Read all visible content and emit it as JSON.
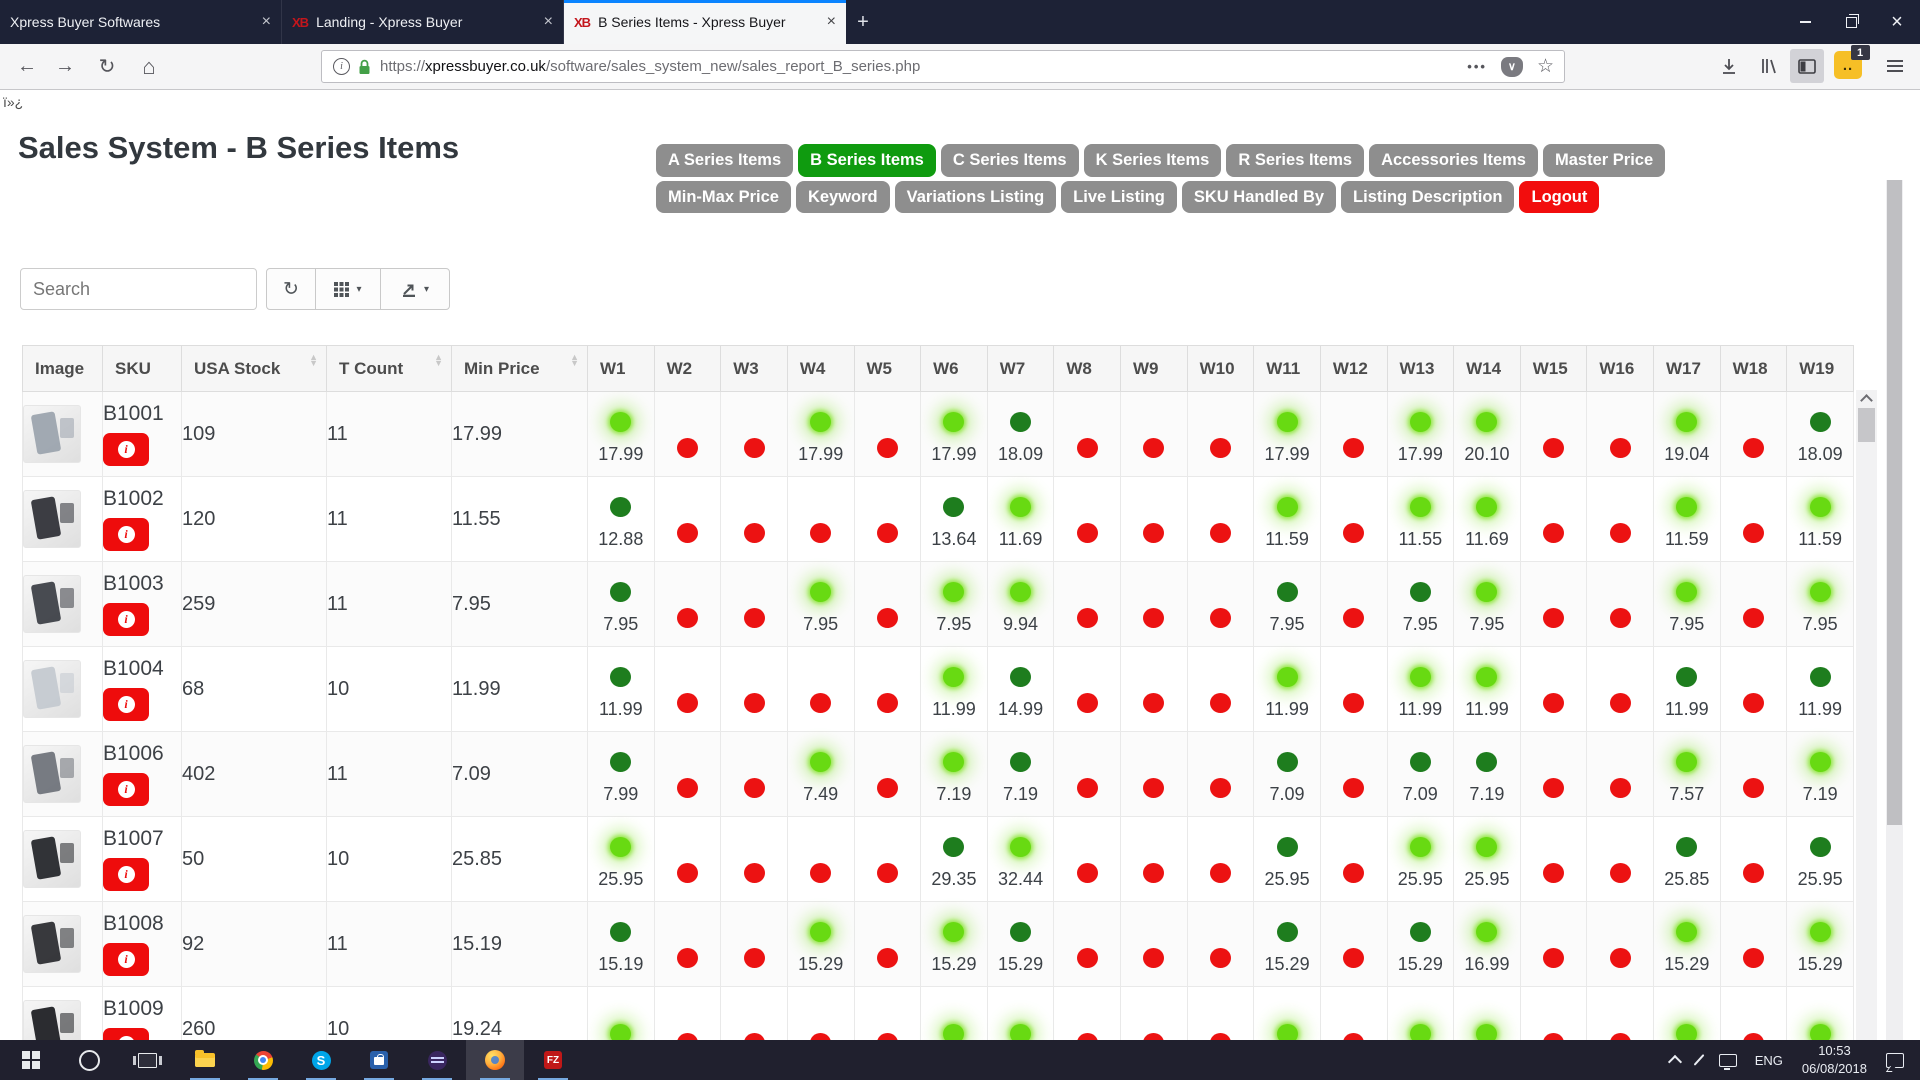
{
  "browser": {
    "tabs": [
      {
        "title": "Xpress Buyer Softwares",
        "favicon": "",
        "active": false
      },
      {
        "title": "Landing - Xpress Buyer",
        "favicon": "XB",
        "active": false
      },
      {
        "title": "B Series Items - Xpress Buyer",
        "favicon": "XB",
        "active": true
      }
    ],
    "url": {
      "scheme": "https://",
      "domain": "xpressbuyer.co.uk",
      "path": "/software/sales_system_new/sales_report_B_series.php"
    },
    "extension_badge": "1",
    "icons": {
      "back": "←",
      "forward": "→",
      "reload": "↻",
      "home": "⌂",
      "page_actions": "•••",
      "pocket_chevron": "∨",
      "bookmark_star": "☆",
      "close": "×",
      "new_tab": "+",
      "info_i": "i"
    }
  },
  "page": {
    "bom_artifact": "ï»¿",
    "title": "Sales System - B Series Items",
    "nav_buttons": [
      {
        "label": "A Series Items",
        "style": "gray"
      },
      {
        "label": "B Series Items",
        "style": "green"
      },
      {
        "label": "C Series Items",
        "style": "gray"
      },
      {
        "label": "K Series Items",
        "style": "gray"
      },
      {
        "label": "R Series Items",
        "style": "gray"
      },
      {
        "label": "Accessories Items",
        "style": "gray"
      },
      {
        "label": "Master Price",
        "style": "gray"
      },
      {
        "label": "Min-Max Price",
        "style": "gray"
      },
      {
        "label": "Keyword",
        "style": "gray"
      },
      {
        "label": "Variations Listing",
        "style": "gray"
      },
      {
        "label": "Live Listing",
        "style": "gray"
      },
      {
        "label": "SKU Handled By",
        "style": "gray"
      },
      {
        "label": "Listing Description",
        "style": "gray"
      },
      {
        "label": "Logout",
        "style": "red"
      }
    ],
    "search_placeholder": "Search",
    "toolbar_icons": [
      "refresh-icon",
      "columns-grid-icon",
      "export-icon"
    ]
  },
  "table": {
    "columns": [
      {
        "label": "Image",
        "sortable": false
      },
      {
        "label": "SKU",
        "sortable": false
      },
      {
        "label": "USA Stock",
        "sortable": true
      },
      {
        "label": "T Count",
        "sortable": true
      },
      {
        "label": "Min Price",
        "sortable": true
      }
    ],
    "week_columns": [
      "W1",
      "W2",
      "W3",
      "W4",
      "W5",
      "W6",
      "W7",
      "W8",
      "W9",
      "W10",
      "W11",
      "W12",
      "W13",
      "W14",
      "W15",
      "W16",
      "W17",
      "W18",
      "W19"
    ],
    "dot_colors": {
      "green_glow": "#68da12",
      "green_dark": "#1e7d1e",
      "red": "#ec1212"
    },
    "rows": [
      {
        "sku": "B1001",
        "stock": "109",
        "t_count": "11",
        "min_price": "17.99",
        "thumb": "#9aa3ad",
        "weeks": [
          {
            "s": "g",
            "v": "17.99"
          },
          {
            "s": "r"
          },
          {
            "s": "r"
          },
          {
            "s": "g",
            "v": "17.99"
          },
          {
            "s": "r"
          },
          {
            "s": "g",
            "v": "17.99"
          },
          {
            "s": "d",
            "v": "18.09"
          },
          {
            "s": "r"
          },
          {
            "s": "r"
          },
          {
            "s": "r"
          },
          {
            "s": "g",
            "v": "17.99"
          },
          {
            "s": "r"
          },
          {
            "s": "g",
            "v": "17.99"
          },
          {
            "s": "g",
            "v": "20.10"
          },
          {
            "s": "r"
          },
          {
            "s": "r"
          },
          {
            "s": "g",
            "v": "19.04"
          },
          {
            "s": "r"
          },
          {
            "s": "d",
            "v": "18.09"
          }
        ]
      },
      {
        "sku": "B1002",
        "stock": "120",
        "t_count": "11",
        "min_price": "11.55",
        "thumb": "#2c2e34",
        "weeks": [
          {
            "s": "d",
            "v": "12.88"
          },
          {
            "s": "r"
          },
          {
            "s": "r"
          },
          {
            "s": "r"
          },
          {
            "s": "r"
          },
          {
            "s": "d",
            "v": "13.64"
          },
          {
            "s": "g",
            "v": "11.69"
          },
          {
            "s": "r"
          },
          {
            "s": "r"
          },
          {
            "s": "r"
          },
          {
            "s": "g",
            "v": "11.59"
          },
          {
            "s": "r"
          },
          {
            "s": "g",
            "v": "11.55"
          },
          {
            "s": "g",
            "v": "11.69"
          },
          {
            "s": "r"
          },
          {
            "s": "r"
          },
          {
            "s": "g",
            "v": "11.59"
          },
          {
            "s": "r"
          },
          {
            "s": "g",
            "v": "11.59"
          }
        ]
      },
      {
        "sku": "B1003",
        "stock": "259",
        "t_count": "11",
        "min_price": "7.95",
        "thumb": "#3a3d43",
        "weeks": [
          {
            "s": "d",
            "v": "7.95"
          },
          {
            "s": "r"
          },
          {
            "s": "r"
          },
          {
            "s": "g",
            "v": "7.95"
          },
          {
            "s": "r"
          },
          {
            "s": "g",
            "v": "7.95"
          },
          {
            "s": "g",
            "v": "9.94"
          },
          {
            "s": "r"
          },
          {
            "s": "r"
          },
          {
            "s": "r"
          },
          {
            "s": "d",
            "v": "7.95"
          },
          {
            "s": "r"
          },
          {
            "s": "d",
            "v": "7.95"
          },
          {
            "s": "g",
            "v": "7.95"
          },
          {
            "s": "r"
          },
          {
            "s": "r"
          },
          {
            "s": "g",
            "v": "7.95"
          },
          {
            "s": "r"
          },
          {
            "s": "g",
            "v": "7.95"
          }
        ]
      },
      {
        "sku": "B1004",
        "stock": "68",
        "t_count": "10",
        "min_price": "11.99",
        "thumb": "#c3c9cf",
        "weeks": [
          {
            "s": "d",
            "v": "11.99"
          },
          {
            "s": "r"
          },
          {
            "s": "r"
          },
          {
            "s": "r"
          },
          {
            "s": "r"
          },
          {
            "s": "g",
            "v": "11.99"
          },
          {
            "s": "d",
            "v": "14.99"
          },
          {
            "s": "r"
          },
          {
            "s": "r"
          },
          {
            "s": "r"
          },
          {
            "s": "g",
            "v": "11.99"
          },
          {
            "s": "r"
          },
          {
            "s": "g",
            "v": "11.99"
          },
          {
            "s": "g",
            "v": "11.99"
          },
          {
            "s": "r"
          },
          {
            "s": "r"
          },
          {
            "s": "d",
            "v": "11.99"
          },
          {
            "s": "r"
          },
          {
            "s": "d",
            "v": "11.99"
          }
        ]
      },
      {
        "sku": "B1006",
        "stock": "402",
        "t_count": "11",
        "min_price": "7.09",
        "thumb": "#6d7178",
        "weeks": [
          {
            "s": "d",
            "v": "7.99"
          },
          {
            "s": "r"
          },
          {
            "s": "r"
          },
          {
            "s": "g",
            "v": "7.49"
          },
          {
            "s": "r"
          },
          {
            "s": "g",
            "v": "7.19"
          },
          {
            "s": "d",
            "v": "7.19"
          },
          {
            "s": "r"
          },
          {
            "s": "r"
          },
          {
            "s": "r"
          },
          {
            "s": "d",
            "v": "7.09"
          },
          {
            "s": "r"
          },
          {
            "s": "d",
            "v": "7.09"
          },
          {
            "s": "d",
            "v": "7.19"
          },
          {
            "s": "r"
          },
          {
            "s": "r"
          },
          {
            "s": "g",
            "v": "7.57"
          },
          {
            "s": "r"
          },
          {
            "s": "g",
            "v": "7.19"
          }
        ]
      },
      {
        "sku": "B1007",
        "stock": "50",
        "t_count": "10",
        "min_price": "25.85",
        "thumb": "#212327",
        "weeks": [
          {
            "s": "g",
            "v": "25.95"
          },
          {
            "s": "r"
          },
          {
            "s": "r"
          },
          {
            "s": "r"
          },
          {
            "s": "r"
          },
          {
            "s": "d",
            "v": "29.35"
          },
          {
            "s": "g",
            "v": "32.44"
          },
          {
            "s": "r"
          },
          {
            "s": "r"
          },
          {
            "s": "r"
          },
          {
            "s": "d",
            "v": "25.95"
          },
          {
            "s": "r"
          },
          {
            "s": "g",
            "v": "25.95"
          },
          {
            "s": "g",
            "v": "25.95"
          },
          {
            "s": "r"
          },
          {
            "s": "r"
          },
          {
            "s": "d",
            "v": "25.85"
          },
          {
            "s": "r"
          },
          {
            "s": "d",
            "v": "25.95"
          }
        ]
      },
      {
        "sku": "B1008",
        "stock": "92",
        "t_count": "11",
        "min_price": "15.19",
        "thumb": "#28292e",
        "weeks": [
          {
            "s": "d",
            "v": "15.19"
          },
          {
            "s": "r"
          },
          {
            "s": "r"
          },
          {
            "s": "g",
            "v": "15.29"
          },
          {
            "s": "r"
          },
          {
            "s": "g",
            "v": "15.29"
          },
          {
            "s": "d",
            "v": "15.29"
          },
          {
            "s": "r"
          },
          {
            "s": "r"
          },
          {
            "s": "r"
          },
          {
            "s": "d",
            "v": "15.29"
          },
          {
            "s": "r"
          },
          {
            "s": "d",
            "v": "15.29"
          },
          {
            "s": "g",
            "v": "16.99"
          },
          {
            "s": "r"
          },
          {
            "s": "r"
          },
          {
            "s": "g",
            "v": "15.29"
          },
          {
            "s": "r"
          },
          {
            "s": "g",
            "v": "15.29"
          }
        ]
      },
      {
        "sku": "B1009",
        "stock": "260",
        "t_count": "10",
        "min_price": "19.24",
        "thumb": "#1a1b1f",
        "weeks": [
          {
            "s": "g"
          },
          {
            "s": "r"
          },
          {
            "s": "r"
          },
          {
            "s": "r"
          },
          {
            "s": "r"
          },
          {
            "s": "g"
          },
          {
            "s": "g"
          },
          {
            "s": "r"
          },
          {
            "s": "r"
          },
          {
            "s": "r"
          },
          {
            "s": "g"
          },
          {
            "s": "r"
          },
          {
            "s": "g"
          },
          {
            "s": "g"
          },
          {
            "s": "r"
          },
          {
            "s": "r"
          },
          {
            "s": "g"
          },
          {
            "s": "r"
          },
          {
            "s": "g"
          }
        ]
      }
    ]
  },
  "taskbar": {
    "apps": [
      {
        "name": "start",
        "running": false
      },
      {
        "name": "cortana",
        "running": false
      },
      {
        "name": "task-view",
        "running": false
      },
      {
        "name": "file-explorer",
        "running": true
      },
      {
        "name": "chrome",
        "running": true
      },
      {
        "name": "skype",
        "running": true
      },
      {
        "name": "store",
        "running": true
      },
      {
        "name": "eclipse",
        "running": true
      },
      {
        "name": "firefox",
        "running": true,
        "active": true
      },
      {
        "name": "filezilla",
        "running": true
      }
    ],
    "app_glyphs": {
      "skype": "S",
      "filezilla": "FZ"
    },
    "language": "ENG",
    "time": "10:53",
    "date": "06/08/2018"
  }
}
